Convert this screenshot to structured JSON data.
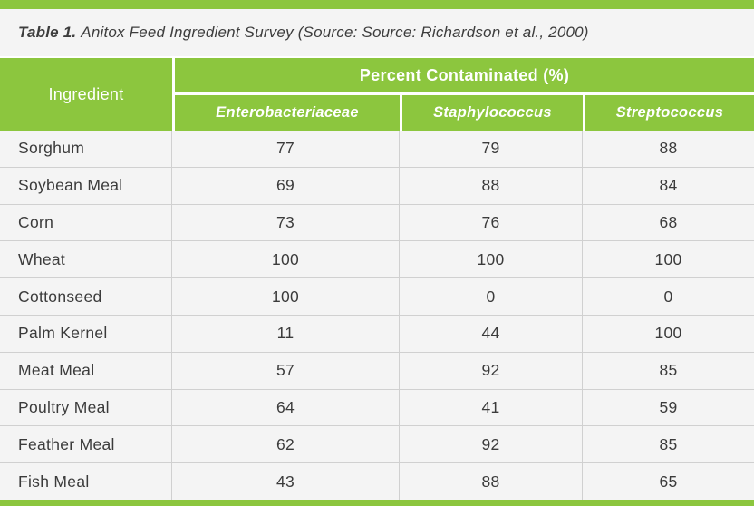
{
  "page": {
    "accent_green": "#8cc63e",
    "background": "#f4f4f4",
    "divider_gray": "#d0d0d0",
    "text_color": "#3b3b3b"
  },
  "title": {
    "prefix": "Table 1.",
    "rest": "Anitox Feed Ingredient Survey (Source: Source: Richardson et al., 2000)"
  },
  "table": {
    "ingredient_header": "Ingredient",
    "group_header": "Percent Contaminated (%)",
    "sub_headers": [
      "Enterobacteriaceae",
      "Staphylococcus",
      "Streptococcus"
    ],
    "rows": [
      {
        "ingredient": "Sorghum",
        "values": [
          77,
          79,
          88
        ]
      },
      {
        "ingredient": "Soybean Meal",
        "values": [
          69,
          88,
          84
        ]
      },
      {
        "ingredient": "Corn",
        "values": [
          73,
          76,
          68
        ]
      },
      {
        "ingredient": "Wheat",
        "values": [
          100,
          100,
          100
        ]
      },
      {
        "ingredient": "Cottonseed",
        "values": [
          100,
          0,
          0
        ]
      },
      {
        "ingredient": "Palm Kernel",
        "values": [
          11,
          44,
          100
        ]
      },
      {
        "ingredient": "Meat Meal",
        "values": [
          57,
          92,
          85
        ]
      },
      {
        "ingredient": "Poultry Meal",
        "values": [
          64,
          41,
          59
        ]
      },
      {
        "ingredient": "Feather Meal",
        "values": [
          62,
          92,
          85
        ]
      },
      {
        "ingredient": "Fish Meal",
        "values": [
          43,
          88,
          65
        ]
      }
    ]
  },
  "chart_data": {
    "type": "table",
    "title": "Table 1. Anitox Feed Ingredient Survey (Source: Source: Richardson et al., 2000)",
    "group_header": "Percent Contaminated (%)",
    "columns": [
      "Ingredient",
      "Enterobacteriaceae",
      "Staphylococcus",
      "Streptococcus"
    ],
    "rows": [
      [
        "Sorghum",
        77,
        79,
        88
      ],
      [
        "Soybean Meal",
        69,
        88,
        84
      ],
      [
        "Corn",
        73,
        76,
        68
      ],
      [
        "Wheat",
        100,
        100,
        100
      ],
      [
        "Cottonseed",
        100,
        0,
        0
      ],
      [
        "Palm Kernel",
        11,
        44,
        100
      ],
      [
        "Meat Meal",
        57,
        92,
        85
      ],
      [
        "Poultry Meal",
        64,
        41,
        59
      ],
      [
        "Feather Meal",
        62,
        92,
        85
      ],
      [
        "Fish Meal",
        43,
        88,
        65
      ]
    ]
  }
}
